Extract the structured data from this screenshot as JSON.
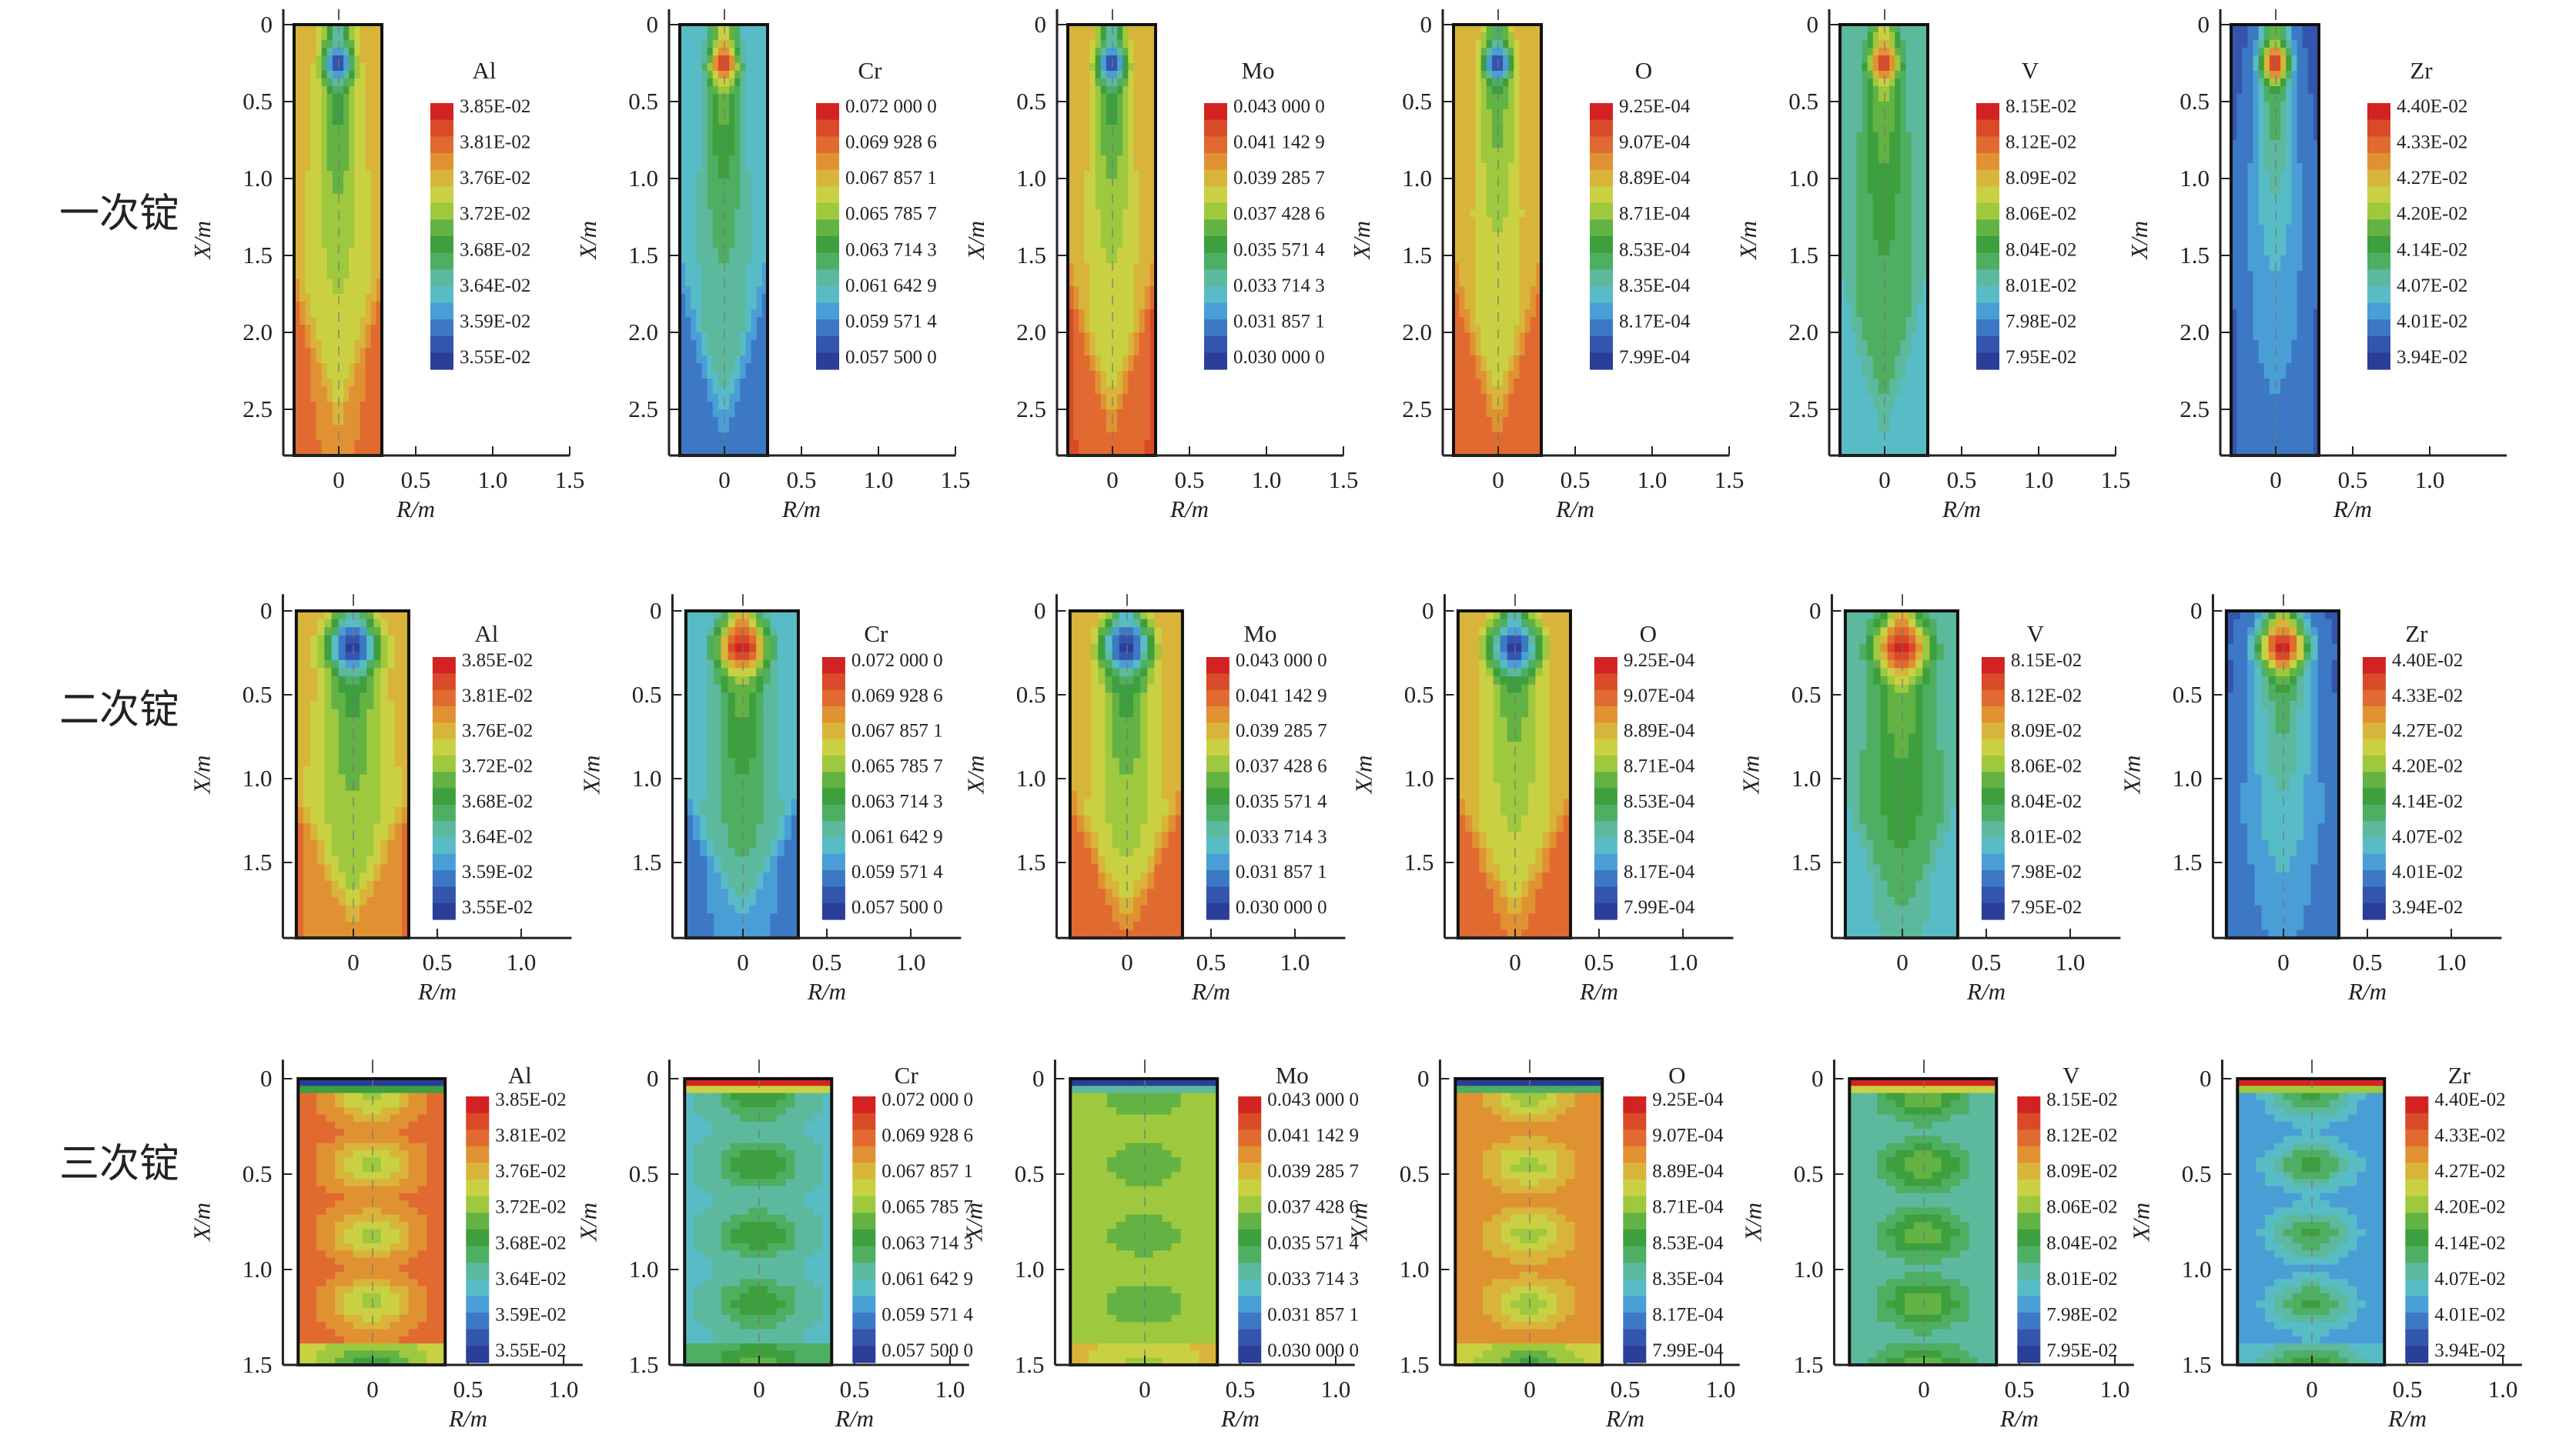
{
  "chart_data": {
    "type": "heatmap",
    "rows": [
      {
        "label": "一次锭",
        "xlabel": "R/m",
        "ylabel": "X/m",
        "yticks": [
          "0",
          "0.5",
          "1.0",
          "1.5",
          "2.0",
          "2.5"
        ],
        "xticks": [
          "0",
          "0.5",
          "1.0",
          "1.5"
        ],
        "xticks_last_col": [
          "0",
          "0.5",
          "1.0"
        ],
        "ylim": [
          0,
          2.8
        ],
        "xlim": [
          -0.36,
          1.5
        ]
      },
      {
        "label": "二次锭",
        "xlabel": "R/m",
        "ylabel": "X/m",
        "yticks": [
          "0",
          "0.5",
          "1.0",
          "1.5"
        ],
        "xticks": [
          "0",
          "0.5",
          "1.0"
        ],
        "ylim": [
          0,
          1.95
        ],
        "xlim": [
          -0.42,
          1.3
        ]
      },
      {
        "label": "三次锭",
        "xlabel": "R/m",
        "ylabel": "X/m",
        "yticks": [
          "0",
          "0.5",
          "1.0",
          "1.5"
        ],
        "xticks": [
          "0",
          "0.5",
          "1.0"
        ],
        "ylim": [
          0,
          1.5
        ],
        "xlim": [
          -0.47,
          1.1
        ]
      }
    ],
    "elements": [
      {
        "name": "Al",
        "legend": [
          "3.85E-02",
          "3.81E-02",
          "3.76E-02",
          "3.72E-02",
          "3.68E-02",
          "3.64E-02",
          "3.59E-02",
          "3.55E-02"
        ]
      },
      {
        "name": "Cr",
        "legend": [
          "0.072 000 0",
          "0.069 928 6",
          "0.067 857 1",
          "0.065 785 7",
          "0.063 714 3",
          "0.061 642 9",
          "0.059 571 4",
          "0.057 500 0"
        ]
      },
      {
        "name": "Mo",
        "legend": [
          "0.043 000 0",
          "0.041 142 9",
          "0.039 285 7",
          "0.037 428 6",
          "0.035 571 4",
          "0.033 714 3",
          "0.031 857 1",
          "0.030 000 0"
        ]
      },
      {
        "name": "O",
        "legend": [
          "9.25E-04",
          "9.07E-04",
          "8.89E-04",
          "8.71E-04",
          "8.53E-04",
          "8.35E-04",
          "8.17E-04",
          "7.99E-04"
        ]
      },
      {
        "name": "V",
        "legend": [
          "8.15E-02",
          "8.12E-02",
          "8.09E-02",
          "8.06E-02",
          "8.04E-02",
          "8.01E-02",
          "7.98E-02",
          "7.95E-02"
        ]
      },
      {
        "name": "Zr",
        "legend": [
          "4.40E-02",
          "4.33E-02",
          "4.27E-02",
          "4.20E-02",
          "4.14E-02",
          "4.07E-02",
          "4.01E-02",
          "3.94E-02"
        ]
      }
    ],
    "colormap": [
      "#2a3e98",
      "#3455ae",
      "#3d78c4",
      "#4a9ed6",
      "#58bcc6",
      "#5cb99e",
      "#4eae62",
      "#3d9f3e",
      "#62b244",
      "#9ec83e",
      "#c9d142",
      "#d8b53a",
      "#e09232",
      "#e06a30",
      "#d84a28",
      "#d22222"
    ]
  }
}
